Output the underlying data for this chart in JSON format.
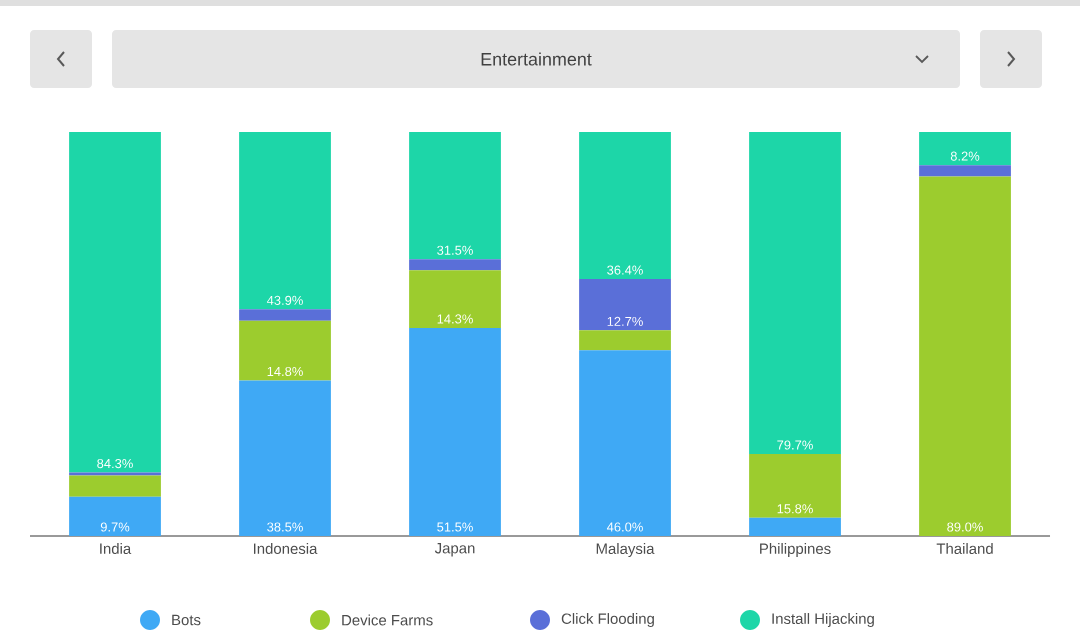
{
  "chart_data": {
    "type": "bar",
    "title": "Entertainment",
    "stacked": true,
    "ylim": [
      0,
      100
    ],
    "tick_labels": "x",
    "legend": "bottom",
    "grid": false,
    "categories": [
      "India",
      "Indonesia",
      "Japan",
      "Malaysia",
      "Philippines",
      "Thailand"
    ],
    "series": [
      {
        "name": "Bots",
        "color": "#3fa9f5",
        "values": [
          9.7,
          38.5,
          51.5,
          46.0,
          4.5,
          0
        ],
        "value_labels": [
          "9.7%",
          "38.5%",
          "51.5%",
          "46.0%",
          null,
          null
        ]
      },
      {
        "name": "Device Farms",
        "color": "#9ccc2e",
        "values": [
          5.3,
          14.8,
          14.3,
          4.9,
          15.8,
          89.0
        ],
        "value_labels": [
          null,
          "14.8%",
          "14.3%",
          null,
          "15.8%",
          "89.0%"
        ]
      },
      {
        "name": "Click Flooding",
        "color": "#5a6fd8",
        "values": [
          0.7,
          2.8,
          2.7,
          12.7,
          0,
          2.8
        ],
        "value_labels": [
          null,
          null,
          null,
          "12.7%",
          null,
          null
        ]
      },
      {
        "name": "Install Hijacking",
        "color": "#1dd6a8",
        "values": [
          84.3,
          43.9,
          31.5,
          36.4,
          79.7,
          8.2
        ],
        "value_labels": [
          "84.3%",
          "43.9%",
          "31.5%",
          "36.4%",
          "79.7%",
          "8.2%"
        ]
      }
    ]
  }
}
